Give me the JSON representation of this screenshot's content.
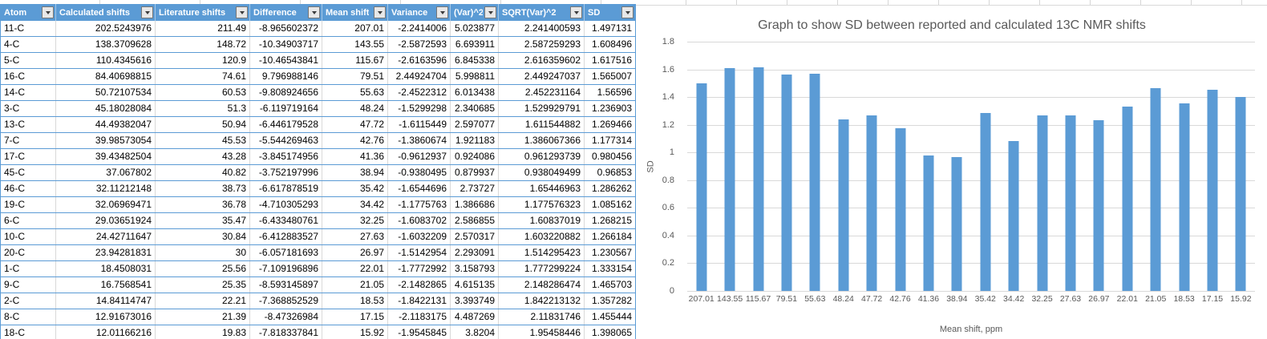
{
  "table": {
    "columns": [
      {
        "label": "Atom"
      },
      {
        "label": "Calculated shifts"
      },
      {
        "label": "Literature shifts"
      },
      {
        "label": "Difference"
      },
      {
        "label": "Mean shift"
      },
      {
        "label": "Variance"
      },
      {
        "label": "(Var)^2"
      },
      {
        "label": "SQRT(Var)^2"
      },
      {
        "label": "SD"
      }
    ],
    "rows": [
      [
        "11-C",
        "202.5243976",
        "211.49",
        "-8.965602372",
        "207.01",
        "-2.2414006",
        "5.023877",
        "2.241400593",
        "1.497131"
      ],
      [
        "4-C",
        "138.3709628",
        "148.72",
        "-10.34903717",
        "143.55",
        "-2.5872593",
        "6.693911",
        "2.587259293",
        "1.608496"
      ],
      [
        "5-C",
        "110.4345616",
        "120.9",
        "-10.46543841",
        "115.67",
        "-2.6163596",
        "6.845338",
        "2.616359602",
        "1.617516"
      ],
      [
        "16-C",
        "84.40698815",
        "74.61",
        "9.796988146",
        "79.51",
        "2.44924704",
        "5.998811",
        "2.449247037",
        "1.565007"
      ],
      [
        "14-C",
        "50.72107534",
        "60.53",
        "-9.808924656",
        "55.63",
        "-2.4522312",
        "6.013438",
        "2.452231164",
        "1.56596"
      ],
      [
        "3-C",
        "45.18028084",
        "51.3",
        "-6.119719164",
        "48.24",
        "-1.5299298",
        "2.340685",
        "1.529929791",
        "1.236903"
      ],
      [
        "13-C",
        "44.49382047",
        "50.94",
        "-6.446179528",
        "47.72",
        "-1.6115449",
        "2.597077",
        "1.611544882",
        "1.269466"
      ],
      [
        "7-C",
        "39.98573054",
        "45.53",
        "-5.544269463",
        "42.76",
        "-1.3860674",
        "1.921183",
        "1.386067366",
        "1.177314"
      ],
      [
        "17-C",
        "39.43482504",
        "43.28",
        "-3.845174956",
        "41.36",
        "-0.9612937",
        "0.924086",
        "0.961293739",
        "0.980456"
      ],
      [
        "45-C",
        "37.067802",
        "40.82",
        "-3.752197996",
        "38.94",
        "-0.9380495",
        "0.879937",
        "0.938049499",
        "0.96853"
      ],
      [
        "46-C",
        "32.11212148",
        "38.73",
        "-6.617878519",
        "35.42",
        "-1.6544696",
        "2.73727",
        "1.65446963",
        "1.286262"
      ],
      [
        "19-C",
        "32.06969471",
        "36.78",
        "-4.710305293",
        "34.42",
        "-1.1775763",
        "1.386686",
        "1.177576323",
        "1.085162"
      ],
      [
        "6-C",
        "29.03651924",
        "35.47",
        "-6.433480761",
        "32.25",
        "-1.6083702",
        "2.586855",
        "1.60837019",
        "1.268215"
      ],
      [
        "10-C",
        "24.42711647",
        "30.84",
        "-6.412883527",
        "27.63",
        "-1.6032209",
        "2.570317",
        "1.603220882",
        "1.266184"
      ],
      [
        "20-C",
        "23.94281831",
        "30",
        "-6.057181693",
        "26.97",
        "-1.5142954",
        "2.293091",
        "1.514295423",
        "1.230567"
      ],
      [
        "1-C",
        "18.4508031",
        "25.56",
        "-7.109196896",
        "22.01",
        "-1.7772992",
        "3.158793",
        "1.777299224",
        "1.333154"
      ],
      [
        "9-C",
        "16.7568541",
        "25.35",
        "-8.593145897",
        "21.05",
        "-2.1482865",
        "4.615135",
        "2.148286474",
        "1.465703"
      ],
      [
        "2-C",
        "14.84114747",
        "22.21",
        "-7.368852529",
        "18.53",
        "-1.8422131",
        "3.393749",
        "1.842213132",
        "1.357282"
      ],
      [
        "8-C",
        "12.91673016",
        "21.39",
        "-8.47326984",
        "17.15",
        "-2.1183175",
        "4.487269",
        "2.11831746",
        "1.455444"
      ],
      [
        "18-C",
        "12.01166216",
        "19.83",
        "-7.818337841",
        "15.92",
        "-1.9545845",
        "3.8204",
        "1.95458446",
        "1.398065"
      ]
    ]
  },
  "chart_data": {
    "type": "bar",
    "title": "Graph to show SD between reported and calculated 13C NMR shifts",
    "xlabel": "Mean shift, ppm",
    "ylabel": "SD",
    "categories": [
      "207.01",
      "143.55",
      "115.67",
      "79.51",
      "55.63",
      "48.24",
      "47.72",
      "42.76",
      "41.36",
      "38.94",
      "35.42",
      "34.42",
      "32.25",
      "27.63",
      "26.97",
      "22.01",
      "21.05",
      "18.53",
      "17.15",
      "15.92"
    ],
    "values": [
      1.497131,
      1.608496,
      1.617516,
      1.565007,
      1.56596,
      1.236903,
      1.269466,
      1.177314,
      0.980456,
      0.96853,
      1.286262,
      1.085162,
      1.268215,
      1.266184,
      1.230567,
      1.333154,
      1.465703,
      1.357282,
      1.455444,
      1.398065
    ],
    "ylim": [
      0,
      1.8
    ],
    "y_ticks": [
      "1.8",
      "1.6",
      "1.4",
      "1.2",
      "1",
      "0.8",
      "0.6",
      "0.4",
      "0.2",
      "0"
    ],
    "grid": true,
    "legend_position": "none",
    "bar_color": "#5B9BD5"
  },
  "colors": {
    "header_bg": "#5B9BD5",
    "table_border": "#5B9BD5",
    "grid_line": "#D9D9D9",
    "axis_text": "#595959",
    "bar_fill": "#5B9BD5"
  }
}
